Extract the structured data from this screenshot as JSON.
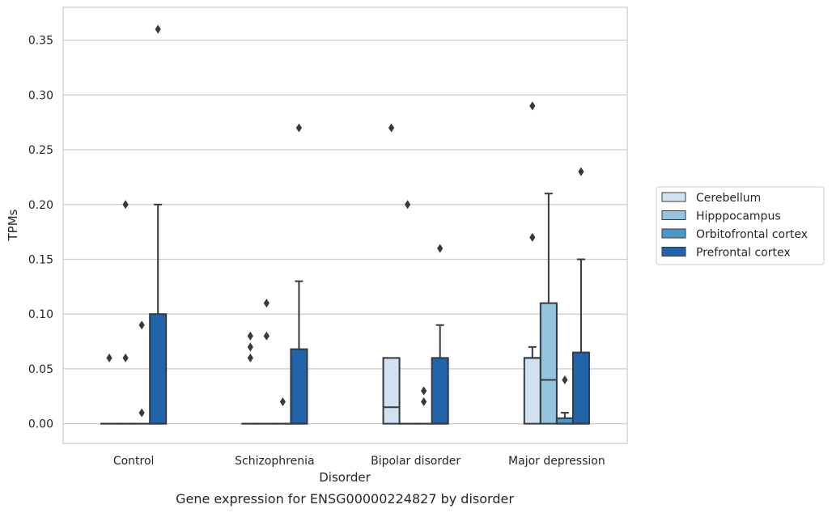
{
  "caption": "Gene expression for ENSG00000224827 by disorder",
  "chart_data": {
    "type": "box",
    "xlabel": "Disorder",
    "ylabel": "TPMs",
    "ylim": [
      -0.018,
      0.38
    ],
    "yticks": [
      "0.00",
      "0.05",
      "0.10",
      "0.15",
      "0.20",
      "0.25",
      "0.30",
      "0.35"
    ],
    "ytick_values": [
      0,
      0.05,
      0.1,
      0.15,
      0.2,
      0.25,
      0.3,
      0.35
    ],
    "grid": "horizontal",
    "legend_position": "right",
    "categories": [
      "Control",
      "Schizophrenia",
      "Bipolar disorder",
      "Major depression"
    ],
    "series": [
      {
        "name": "Cerebellum",
        "color": "#d0e1f2",
        "boxes": [
          {
            "q1": 0,
            "median": 0,
            "q3": 0,
            "whisker_low": 0,
            "whisker_high": 0,
            "outliers": [
              0.06
            ]
          },
          {
            "q1": 0,
            "median": 0,
            "q3": 0,
            "whisker_low": 0,
            "whisker_high": 0,
            "outliers": [
              0.06,
              0.07,
              0.08
            ]
          },
          {
            "q1": 0,
            "median": 0.015,
            "q3": 0.06,
            "whisker_low": 0,
            "whisker_high": 0.06,
            "outliers": [
              0.27
            ]
          },
          {
            "q1": 0,
            "median": 0.06,
            "q3": 0.06,
            "whisker_low": 0,
            "whisker_high": 0.07,
            "outliers": [
              0.17,
              0.29
            ]
          }
        ]
      },
      {
        "name": "Hipppocampus",
        "color": "#94c4df",
        "boxes": [
          {
            "q1": 0,
            "median": 0,
            "q3": 0,
            "whisker_low": 0,
            "whisker_high": 0,
            "outliers": [
              0.06,
              0.2
            ]
          },
          {
            "q1": 0,
            "median": 0,
            "q3": 0,
            "whisker_low": 0,
            "whisker_high": 0,
            "outliers": [
              0.08,
              0.11
            ]
          },
          {
            "q1": 0,
            "median": 0,
            "q3": 0,
            "whisker_low": 0,
            "whisker_high": 0,
            "outliers": [
              0.2
            ]
          },
          {
            "q1": 0,
            "median": 0.04,
            "q3": 0.11,
            "whisker_low": 0,
            "whisker_high": 0.21,
            "outliers": []
          }
        ]
      },
      {
        "name": "Orbitofrontal cortex",
        "color": "#4a98c9",
        "boxes": [
          {
            "q1": 0,
            "median": 0,
            "q3": 0,
            "whisker_low": 0,
            "whisker_high": 0,
            "outliers": [
              0.01,
              0.09
            ]
          },
          {
            "q1": 0,
            "median": 0,
            "q3": 0,
            "whisker_low": 0,
            "whisker_high": 0,
            "outliers": [
              0.02
            ]
          },
          {
            "q1": 0,
            "median": 0,
            "q3": 0,
            "whisker_low": 0,
            "whisker_high": 0,
            "outliers": [
              0.02,
              0.03
            ]
          },
          {
            "q1": 0,
            "median": 0,
            "q3": 0.005,
            "whisker_low": 0,
            "whisker_high": 0.01,
            "outliers": [
              0.04
            ]
          }
        ]
      },
      {
        "name": "Prefrontal cortex",
        "color": "#2164a9",
        "boxes": [
          {
            "q1": 0,
            "median": 0,
            "q3": 0.1,
            "whisker_low": 0,
            "whisker_high": 0.2,
            "outliers": [
              0.36
            ]
          },
          {
            "q1": 0,
            "median": 0,
            "q3": 0.068,
            "whisker_low": 0,
            "whisker_high": 0.13,
            "outliers": [
              0.27
            ]
          },
          {
            "q1": 0,
            "median": 0,
            "q3": 0.06,
            "whisker_low": 0,
            "whisker_high": 0.09,
            "outliers": [
              0.16
            ]
          },
          {
            "q1": 0,
            "median": 0,
            "q3": 0.065,
            "whisker_low": 0,
            "whisker_high": 0.15,
            "outliers": [
              0.23
            ]
          }
        ]
      }
    ]
  }
}
